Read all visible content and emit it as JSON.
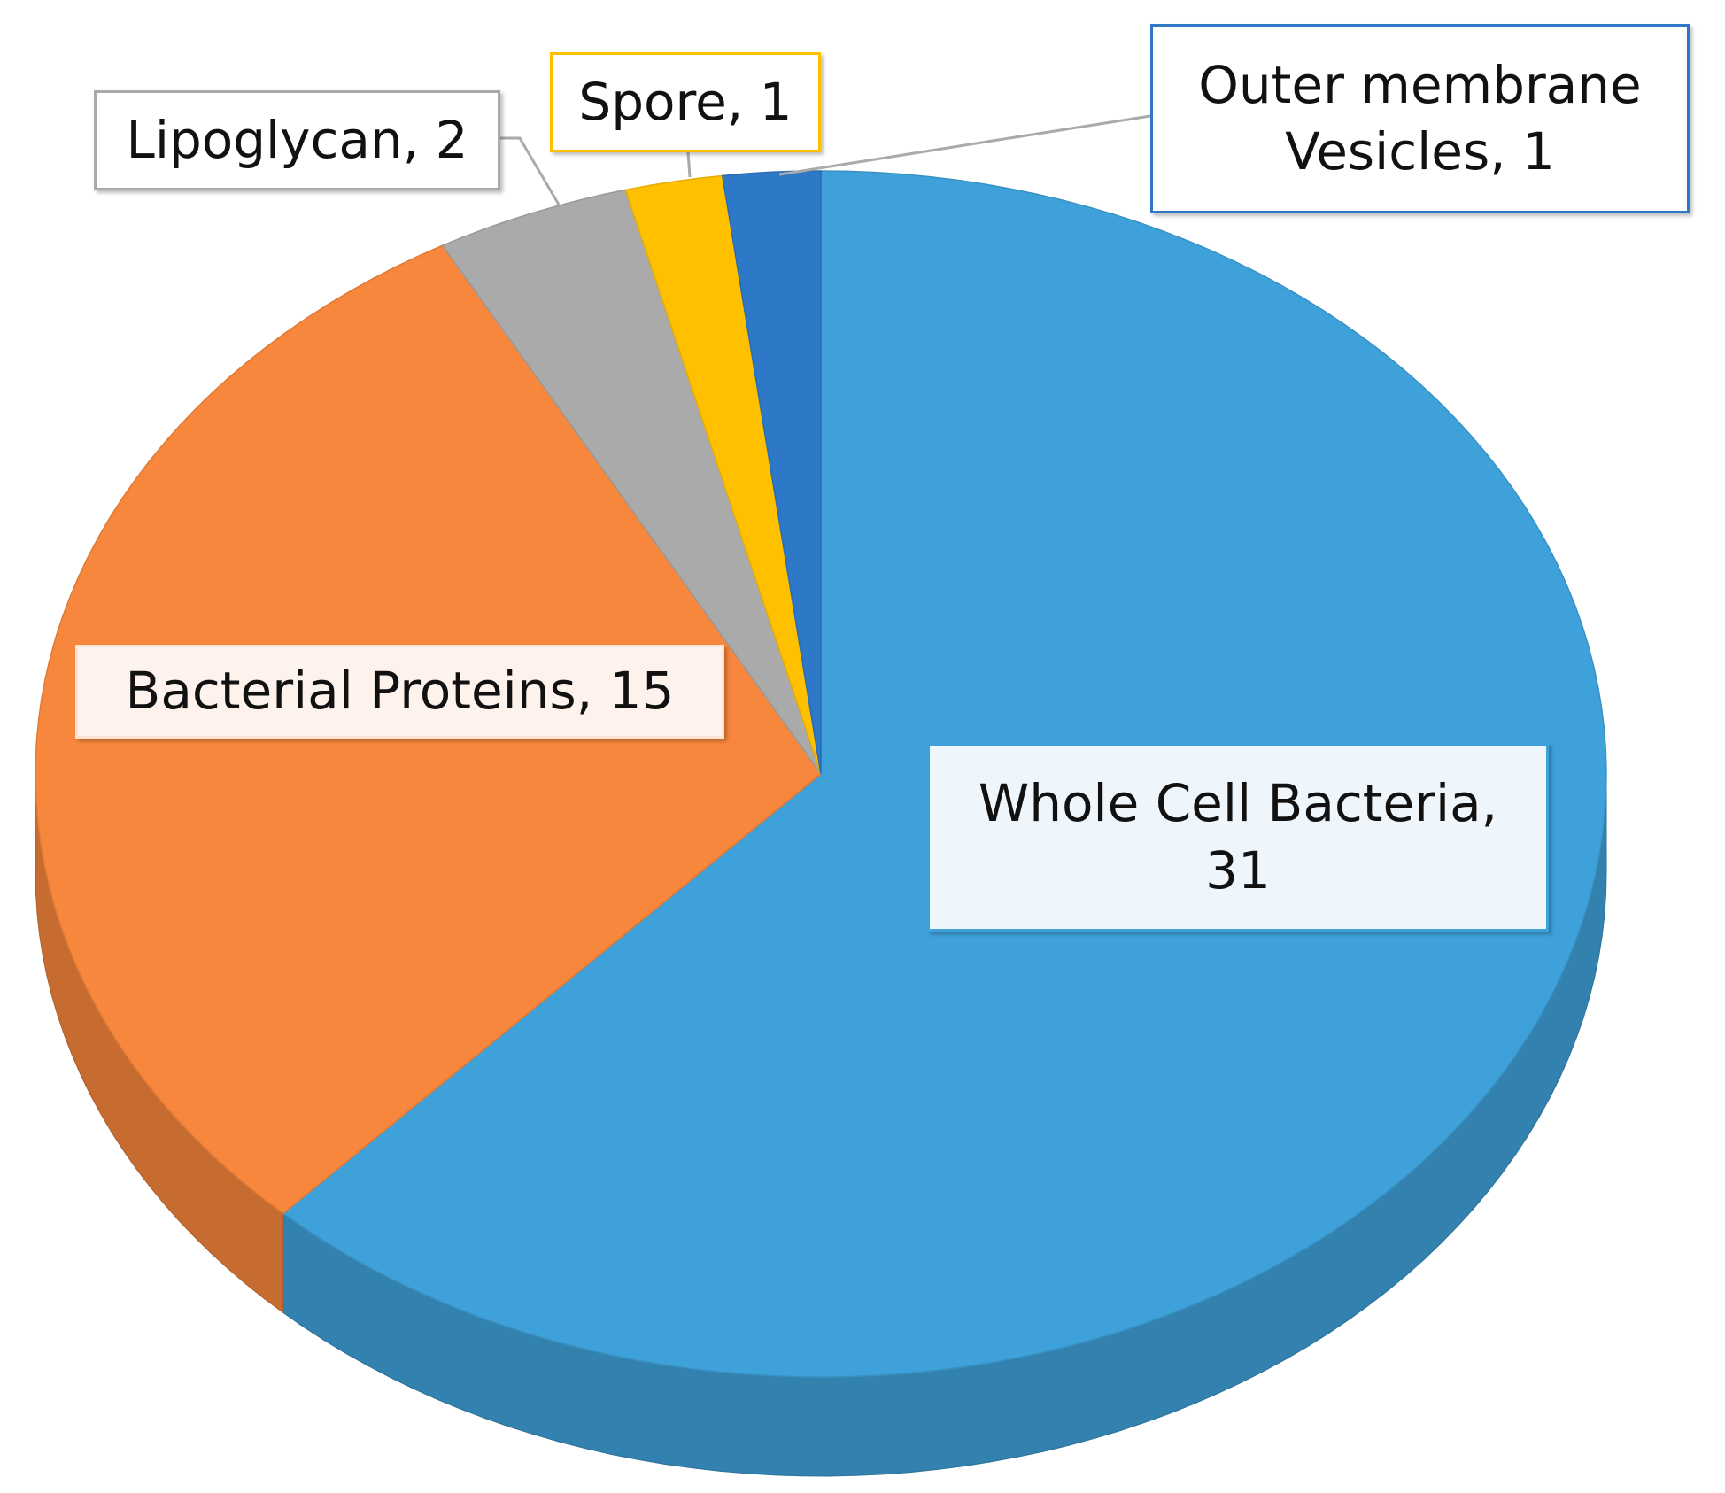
{
  "chart_data": {
    "type": "pie",
    "style": "3d",
    "categories": [
      "Whole Cell Bacteria",
      "Bacterial Proteins",
      "Lipoglycan",
      "Spore",
      "Outer membrane Vesicles"
    ],
    "values": [
      31,
      15,
      2,
      1,
      1
    ],
    "value_labels": [
      "Whole Cell Bacteria, 31",
      "Bacterial Proteins, 15",
      "Lipoglycan, 2",
      "Spore, 1",
      "Outer membrane Vesicles, 1"
    ],
    "colors": [
      "#3fa1d9",
      "#f7873c",
      "#aaaaaa",
      "#ffc000",
      "#2e78c8"
    ]
  }
}
